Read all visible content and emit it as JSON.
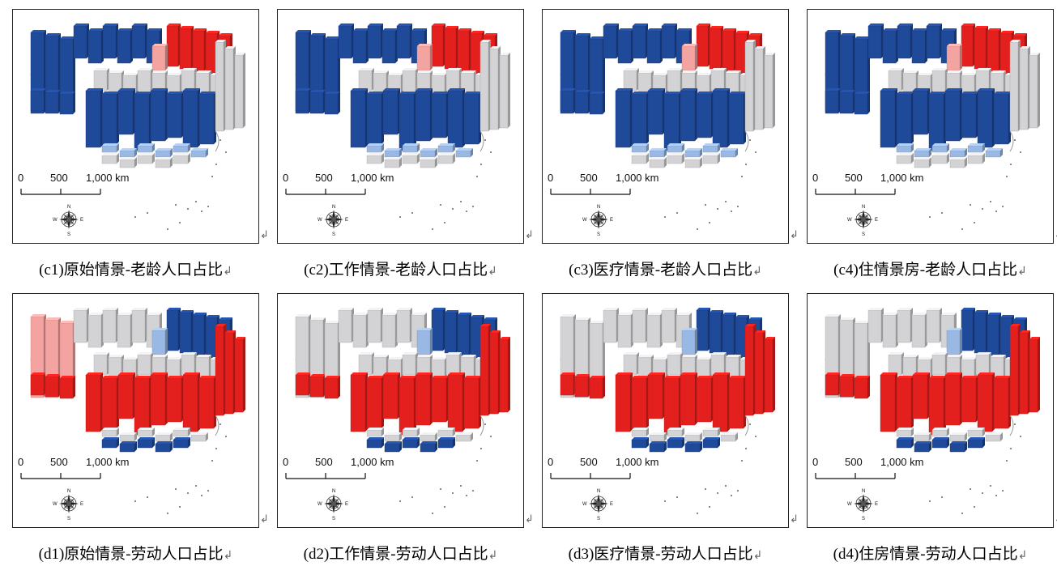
{
  "colors": {
    "red": "#e3201d",
    "light_red": "#f3a3a0",
    "gray": "#d3d3d5",
    "light_blue": "#99b8e3",
    "blue": "#1f4a9a"
  },
  "scale_bar": {
    "t0": "0",
    "t1": "500",
    "t2": "1,000 km"
  },
  "compass": {
    "n": "N",
    "s": "S",
    "e": "E",
    "w": "W",
    "icon": "compass-rose-icon"
  },
  "return_mark": "↲",
  "panels": [
    {
      "id": "c1",
      "caption": "(c1)原始情景-老龄人口占比",
      "scheme": "c"
    },
    {
      "id": "c2",
      "caption": "(c2)工作情景-老龄人口占比",
      "scheme": "c"
    },
    {
      "id": "c3",
      "caption": "(c3)医疗情景-老龄人口占比",
      "scheme": "c"
    },
    {
      "id": "c4",
      "caption": "(c4)住情景房-老龄人口占比",
      "scheme": "c"
    },
    {
      "id": "d1",
      "caption": "(d1)原始情景-劳动人口占比",
      "scheme": "d"
    },
    {
      "id": "d2",
      "caption": "(d2)工作情景-劳动人口占比",
      "scheme": "d"
    },
    {
      "id": "d3",
      "caption": "(d3)医疗情景-劳动人口占比",
      "scheme": "d"
    },
    {
      "id": "d4",
      "caption": "(d4)住房情景-劳动人口占比",
      "scheme": "d"
    }
  ]
}
